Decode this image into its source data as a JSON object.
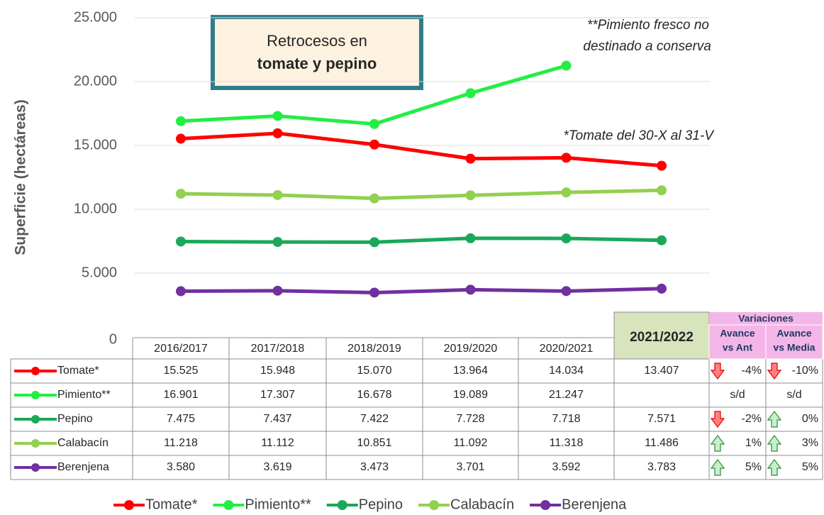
{
  "chart_data": {
    "type": "line",
    "ylabel": "Superficie (hectáreas)",
    "categories": [
      "2016/2017",
      "2017/2018",
      "2018/2019",
      "2019/2020",
      "2020/2021",
      "2021/2022"
    ],
    "ylim": [
      0,
      25000
    ],
    "yticks": [
      0,
      {
        "value": 5000,
        "label": "5.000"
      },
      {
        "value": 10000,
        "label": "10.000"
      },
      {
        "value": 15000,
        "label": "15.000"
      },
      {
        "value": 20000,
        "label": "20.000"
      },
      {
        "value": 25000,
        "label": "25.000"
      }
    ],
    "grid": true,
    "legend": "bottom",
    "series": [
      {
        "name": "Tomate*",
        "color": "#ff0000",
        "values": [
          15525,
          15948,
          15070,
          13964,
          14034,
          13407
        ],
        "value_labels": [
          "15.525",
          "15.948",
          "15.070",
          "13.964",
          "14.034",
          "13.407"
        ]
      },
      {
        "name": "Pimiento**",
        "color": "#22ee44",
        "values": [
          16901,
          17307,
          16678,
          19089,
          21247,
          null
        ],
        "value_labels": [
          "16.901",
          "17.307",
          "16.678",
          "19.089",
          "21.247",
          null
        ]
      },
      {
        "name": "Pepino",
        "color": "#1aa85a",
        "values": [
          7475,
          7437,
          7422,
          7728,
          7718,
          7571
        ],
        "value_labels": [
          "7.475",
          "7.437",
          "7.422",
          "7.728",
          "7.718",
          "7.571"
        ]
      },
      {
        "name": "Calabacín",
        "color": "#92d050",
        "values": [
          11218,
          11112,
          10851,
          11092,
          11318,
          11486
        ],
        "value_labels": [
          "11.218",
          "11.112",
          "10.851",
          "11.092",
          "11.318",
          "11.486"
        ]
      },
      {
        "name": "Berenjena",
        "color": "#7030a0",
        "values": [
          3580,
          3619,
          3473,
          3701,
          3592,
          3783
        ],
        "value_labels": [
          "3.580",
          "3.619",
          "3.473",
          "3.701",
          "3.592",
          "3.783"
        ]
      }
    ],
    "callout": [
      "Retrocesos en",
      "tomate y pepino"
    ],
    "notes": [
      [
        "**Pimiento fresco no",
        "destinado a conserva"
      ],
      [
        "*Tomate del 30-X al 31-V"
      ]
    ],
    "variations": {
      "title": "Variaciones",
      "headers": [
        [
          "Avance",
          "vs Ant"
        ],
        [
          "Avance",
          "vs Media"
        ]
      ],
      "rows": [
        [
          "-4%",
          "-10%"
        ],
        [
          "s/d",
          "s/d"
        ],
        [
          "-2%",
          "0%"
        ],
        [
          "1%",
          "3%"
        ],
        [
          "5%",
          "5%"
        ]
      ]
    }
  }
}
